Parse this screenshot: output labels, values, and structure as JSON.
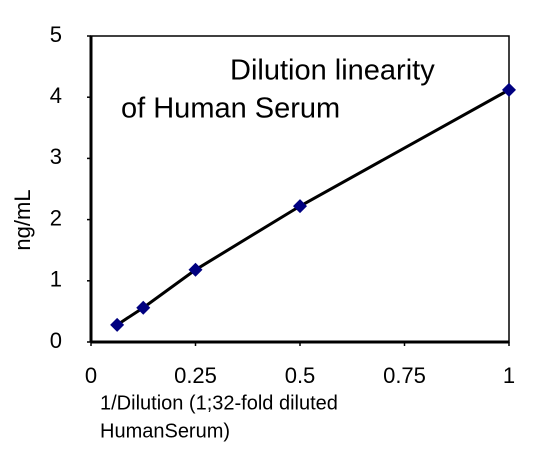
{
  "chart_data": {
    "type": "line",
    "title": [
      "Dilution linearity",
      "of Human Serum"
    ],
    "x_label": [
      "1/Dilution  (1;32-fold diluted",
      "HumanSerum)"
    ],
    "y_label": "ng/mL",
    "x": [
      0.0625,
      0.125,
      0.25,
      0.5,
      1
    ],
    "series": [
      {
        "color": "#000000",
        "marker_color": "#000080",
        "values": [
          0.28,
          0.56,
          1.18,
          2.22,
          4.12
        ]
      }
    ],
    "xlim": [
      0,
      1
    ],
    "xticks": [
      0,
      0.25,
      0.5,
      0.75,
      1
    ],
    "ylim": [
      0,
      5
    ],
    "yticks": [
      0,
      1,
      2,
      3,
      4,
      5
    ],
    "grid": false
  }
}
